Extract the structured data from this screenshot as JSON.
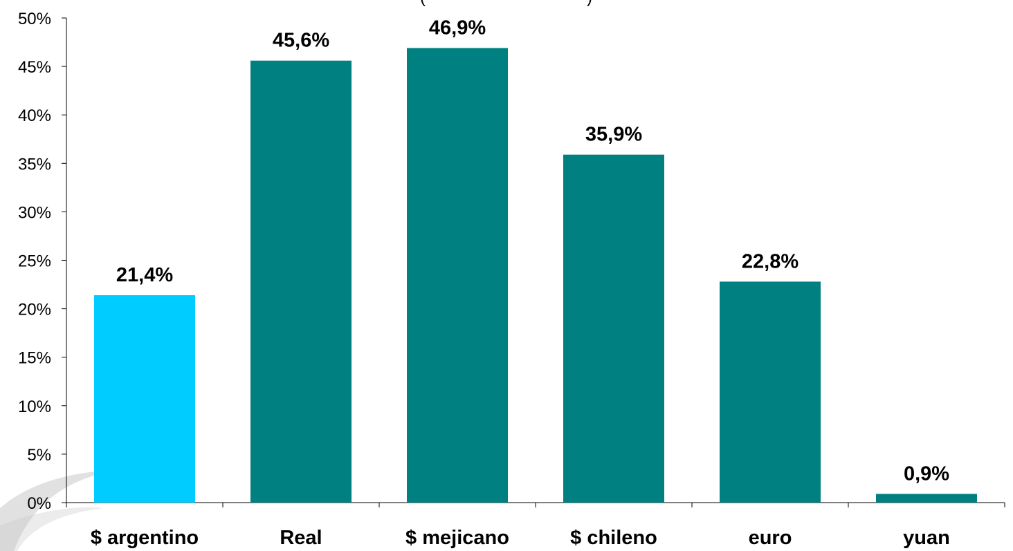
{
  "chart_data": {
    "type": "bar",
    "title_fragment": "(",
    "title_fragment_end": ")",
    "categories": [
      "$ argentino",
      "Real",
      "$ mejicano",
      "$ chileno",
      "euro",
      "yuan"
    ],
    "values": [
      21.4,
      45.6,
      46.9,
      35.9,
      22.8,
      0.9
    ],
    "value_labels": [
      "21,4%",
      "45,6%",
      "46,9%",
      "35,9%",
      "22,8%",
      "0,9%"
    ],
    "y_ticks": [
      0,
      5,
      10,
      15,
      20,
      25,
      30,
      35,
      40,
      45,
      50
    ],
    "y_tick_labels": [
      "0%",
      "5%",
      "10%",
      "15%",
      "20%",
      "25%",
      "30%",
      "35%",
      "40%",
      "45%",
      "50%"
    ],
    "ylim": [
      0,
      50
    ],
    "grid": false,
    "legend": "none",
    "highlight_index": 0,
    "colors": {
      "highlight": "#00CCFF",
      "default": "#008080",
      "axis": "#000000",
      "decor": "#C8C8C8"
    }
  }
}
